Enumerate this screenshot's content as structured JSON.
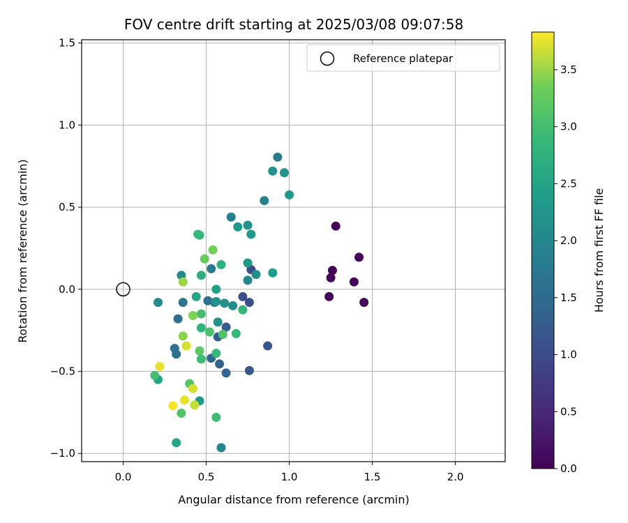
{
  "chart_data": {
    "type": "scatter",
    "title": "FOV centre drift starting at 2025/03/08 09:07:58",
    "xlabel": "Angular distance from reference (arcmin)",
    "ylabel": "Rotation from reference (arcmin)",
    "xlim": [
      -0.25,
      2.3
    ],
    "ylim": [
      -1.05,
      1.52
    ],
    "xticks": [
      0.0,
      0.5,
      1.0,
      1.5,
      2.0
    ],
    "xtick_labels": [
      "0.0",
      "0.5",
      "1.0",
      "1.5",
      "2.0"
    ],
    "yticks": [
      -1.0,
      -0.5,
      0.0,
      0.5,
      1.0,
      1.5
    ],
    "ytick_labels": [
      "−1.0",
      "−0.5",
      "0.0",
      "0.5",
      "1.0",
      "1.5"
    ],
    "grid": true,
    "legend": {
      "position": "top-right",
      "entries": [
        "Reference platepar"
      ]
    },
    "reference_point": {
      "x": 0.0,
      "y": 0.0
    },
    "colorbar": {
      "label": "Hours from first FF file",
      "range": [
        0.0,
        3.83
      ],
      "ticks": [
        0.0,
        0.5,
        1.0,
        1.5,
        2.0,
        2.5,
        3.0,
        3.5
      ],
      "tick_labels": [
        "0.0",
        "0.5",
        "1.0",
        "1.5",
        "2.0",
        "2.5",
        "3.0",
        "3.5"
      ],
      "colormap": "viridis"
    },
    "points": [
      {
        "x": 1.28,
        "y": 0.385,
        "c": 0.02
      },
      {
        "x": 1.42,
        "y": 0.195,
        "c": 0.03
      },
      {
        "x": 1.26,
        "y": 0.115,
        "c": 0.06
      },
      {
        "x": 1.25,
        "y": 0.07,
        "c": 0.07
      },
      {
        "x": 1.39,
        "y": 0.045,
        "c": 0.04
      },
      {
        "x": 1.24,
        "y": -0.045,
        "c": 0.05
      },
      {
        "x": 1.45,
        "y": -0.08,
        "c": 0.08
      },
      {
        "x": 0.77,
        "y": 0.12,
        "c": 1.0
      },
      {
        "x": 0.72,
        "y": -0.045,
        "c": 1.05
      },
      {
        "x": 0.76,
        "y": -0.08,
        "c": 1.1
      },
      {
        "x": 0.87,
        "y": -0.345,
        "c": 1.15
      },
      {
        "x": 0.76,
        "y": -0.495,
        "c": 1.2
      },
      {
        "x": 0.62,
        "y": -0.23,
        "c": 1.25
      },
      {
        "x": 0.57,
        "y": -0.29,
        "c": 1.3
      },
      {
        "x": 0.58,
        "y": -0.455,
        "c": 1.35
      },
      {
        "x": 0.62,
        "y": -0.51,
        "c": 1.4
      },
      {
        "x": 0.53,
        "y": -0.42,
        "c": 1.45
      },
      {
        "x": 0.55,
        "y": -0.08,
        "c": 1.5
      },
      {
        "x": 0.51,
        "y": -0.07,
        "c": 1.55
      },
      {
        "x": 0.33,
        "y": -0.18,
        "c": 1.55
      },
      {
        "x": 0.31,
        "y": -0.36,
        "c": 1.6
      },
      {
        "x": 0.32,
        "y": -0.395,
        "c": 1.6
      },
      {
        "x": 0.36,
        "y": -0.08,
        "c": 1.7
      },
      {
        "x": 0.53,
        "y": 0.125,
        "c": 1.75
      },
      {
        "x": 0.93,
        "y": 0.805,
        "c": 1.8
      },
      {
        "x": 0.65,
        "y": 0.44,
        "c": 1.85
      },
      {
        "x": 0.85,
        "y": 0.54,
        "c": 1.9
      },
      {
        "x": 0.59,
        "y": -0.965,
        "c": 1.95
      },
      {
        "x": 0.75,
        "y": 0.055,
        "c": 2.0
      },
      {
        "x": 0.21,
        "y": -0.08,
        "c": 2.05
      },
      {
        "x": 0.35,
        "y": 0.085,
        "c": 2.05
      },
      {
        "x": 0.8,
        "y": 0.09,
        "c": 2.1
      },
      {
        "x": 0.66,
        "y": -0.1,
        "c": 2.1
      },
      {
        "x": 0.57,
        "y": -0.2,
        "c": 2.15
      },
      {
        "x": 0.61,
        "y": -0.085,
        "c": 2.15
      },
      {
        "x": 0.56,
        "y": -0.075,
        "c": 2.2
      },
      {
        "x": 0.9,
        "y": 0.72,
        "c": 2.15
      },
      {
        "x": 0.97,
        "y": 0.71,
        "c": 2.2
      },
      {
        "x": 1.0,
        "y": 0.575,
        "c": 2.3
      },
      {
        "x": 0.69,
        "y": 0.38,
        "c": 2.25
      },
      {
        "x": 0.75,
        "y": 0.39,
        "c": 2.2
      },
      {
        "x": 0.77,
        "y": 0.335,
        "c": 2.3
      },
      {
        "x": 0.75,
        "y": 0.16,
        "c": 2.35
      },
      {
        "x": 0.9,
        "y": 0.1,
        "c": 2.4
      },
      {
        "x": 0.56,
        "y": 0.0,
        "c": 2.45
      },
      {
        "x": 0.44,
        "y": -0.045,
        "c": 2.5
      },
      {
        "x": 0.21,
        "y": -0.55,
        "c": 2.5
      },
      {
        "x": 0.46,
        "y": -0.68,
        "c": 2.3
      },
      {
        "x": 0.32,
        "y": -0.935,
        "c": 2.55
      },
      {
        "x": 0.47,
        "y": 0.085,
        "c": 2.7
      },
      {
        "x": 0.59,
        "y": 0.15,
        "c": 2.75
      },
      {
        "x": 0.47,
        "y": -0.235,
        "c": 2.8
      },
      {
        "x": 0.72,
        "y": -0.125,
        "c": 2.85
      },
      {
        "x": 0.68,
        "y": -0.27,
        "c": 2.9
      },
      {
        "x": 0.47,
        "y": -0.425,
        "c": 2.95
      },
      {
        "x": 0.56,
        "y": -0.39,
        "c": 2.9
      },
      {
        "x": 0.56,
        "y": -0.78,
        "c": 2.95
      },
      {
        "x": 0.46,
        "y": 0.33,
        "c": 2.85
      },
      {
        "x": 0.45,
        "y": 0.335,
        "c": 2.9
      },
      {
        "x": 0.47,
        "y": -0.15,
        "c": 3.0
      },
      {
        "x": 0.52,
        "y": -0.26,
        "c": 3.05
      },
      {
        "x": 0.6,
        "y": -0.275,
        "c": 3.1
      },
      {
        "x": 0.19,
        "y": -0.525,
        "c": 3.0
      },
      {
        "x": 0.35,
        "y": -0.755,
        "c": 3.1
      },
      {
        "x": 0.4,
        "y": -0.575,
        "c": 3.15
      },
      {
        "x": 0.46,
        "y": -0.375,
        "c": 3.2
      },
      {
        "x": 0.49,
        "y": 0.185,
        "c": 3.3
      },
      {
        "x": 0.54,
        "y": 0.24,
        "c": 3.35
      },
      {
        "x": 0.42,
        "y": -0.16,
        "c": 3.4
      },
      {
        "x": 0.36,
        "y": -0.285,
        "c": 3.45
      },
      {
        "x": 0.36,
        "y": 0.045,
        "c": 3.5
      },
      {
        "x": 0.42,
        "y": -0.605,
        "c": 3.7
      },
      {
        "x": 0.37,
        "y": -0.675,
        "c": 3.75
      },
      {
        "x": 0.43,
        "y": -0.705,
        "c": 3.65
      },
      {
        "x": 0.3,
        "y": -0.71,
        "c": 3.8
      },
      {
        "x": 0.22,
        "y": -0.47,
        "c": 3.75
      },
      {
        "x": 0.38,
        "y": -0.345,
        "c": 3.7
      }
    ]
  }
}
